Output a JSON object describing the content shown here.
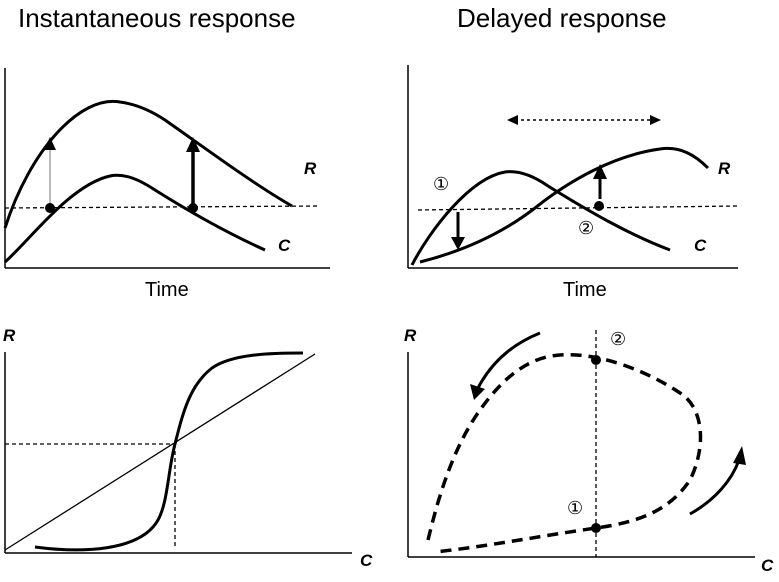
{
  "panels": {
    "top_left": {
      "title": "Instantaneous response",
      "xlabel": "Time",
      "curve_r": "R",
      "curve_c": "C"
    },
    "top_right": {
      "title": "Delayed response",
      "xlabel": "Time",
      "curve_r": "R",
      "curve_c": "C",
      "marker_1": "①",
      "marker_2": "②"
    },
    "bottom_left": {
      "ylabel": "R",
      "xlabel": "C"
    },
    "bottom_right": {
      "ylabel": "R",
      "xlabel": "C",
      "marker_1": "①",
      "marker_2": "②"
    }
  }
}
